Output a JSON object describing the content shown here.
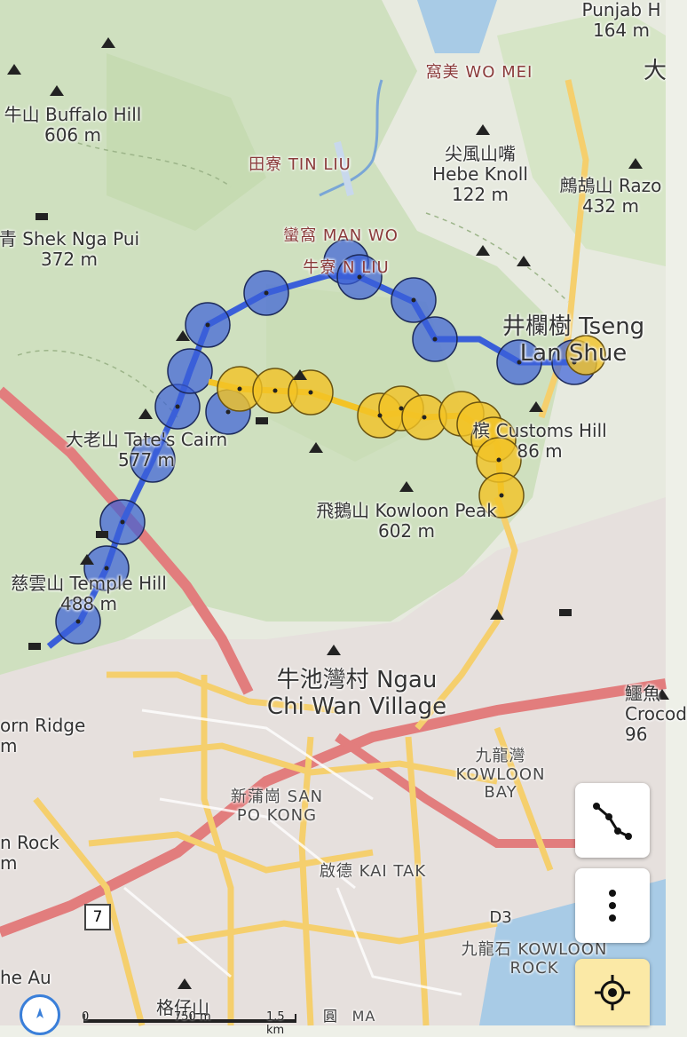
{
  "labels": {
    "punjab": "Punjab H",
    "punjab_elev": "164 m",
    "tai": "大",
    "wo_mei": "窩美 WO MEI",
    "buffalo": "牛山 Buffalo Hill",
    "buffalo_elev": "606 m",
    "tin_liu": "田寮 TIN LIU",
    "hebe_cn": "尖風山嘴",
    "hebe": "Hebe Knoll",
    "hebe_elev": "122 m",
    "razor": "鷓鴣山 Razo",
    "razor_elev": "432 m",
    "shek_nga_pui": "青 Shek Nga Pui",
    "shek_elev": "372 m",
    "man_wo": "蠻窩 MAN WO",
    "ngau_liu": "牛寮 N   LIU",
    "tseng": "井欄樹 Tseng",
    "lan_shue": "Lan Shue",
    "tates": "大老山 Tate's Cairn",
    "tates_elev": "577 m",
    "customs": "槟   Customs Hill",
    "customs_elev": "86 m",
    "kowloon_peak": "飛鵝山 Kowloon Peak",
    "kowloon_peak_elev": "602 m",
    "temple": "慈雲山 Temple Hill",
    "temple_elev": "488 m",
    "ngau_chi_wan_1": "牛池灣村 Ngau",
    "ngau_chi_wan_2": "Chi Wan Village",
    "horn_ridge": "orn Ridge",
    "horn_elev": "m",
    "kowloon_bay_cn": "九龍灣",
    "kowloon_bay_1": "KOWLOON",
    "kowloon_bay_2": "BAY",
    "croc_cn": "鱷魚",
    "croc": "Crocod",
    "croc_elev": "96",
    "san_po_kong_1": "新蒲崗 SAN",
    "san_po_kong_2": "PO KONG",
    "lion_rock": "n Rock",
    "lion_elev": "m",
    "kai_tak": "啟德 KAI TAK",
    "d3": "D3",
    "kowloon_rock_1": "九龍石 KOWLOON",
    "kowloon_rock_2": "ROCK",
    "au": "he Au",
    "kak_tsai": "格仔山",
    "ma": "MA",
    "tau": "圓",
    "route7": "7"
  },
  "scale": {
    "zero": "0",
    "mid": "750 m",
    "end": "1.5 km"
  },
  "controls": {
    "route_icon": "route-icon",
    "menu_icon": "more-vertical-icon",
    "locate_icon": "locate-icon",
    "compass_icon": "compass-icon"
  },
  "colors": {
    "blue_track": "#3a5fd9",
    "yellow_track": "#f3c326",
    "highway": "#e27d7d",
    "major_road": "#f5cf6d",
    "water": "#a8cbe6",
    "forest": "#cfe0bf",
    "urban": "#e8e3e0"
  }
}
